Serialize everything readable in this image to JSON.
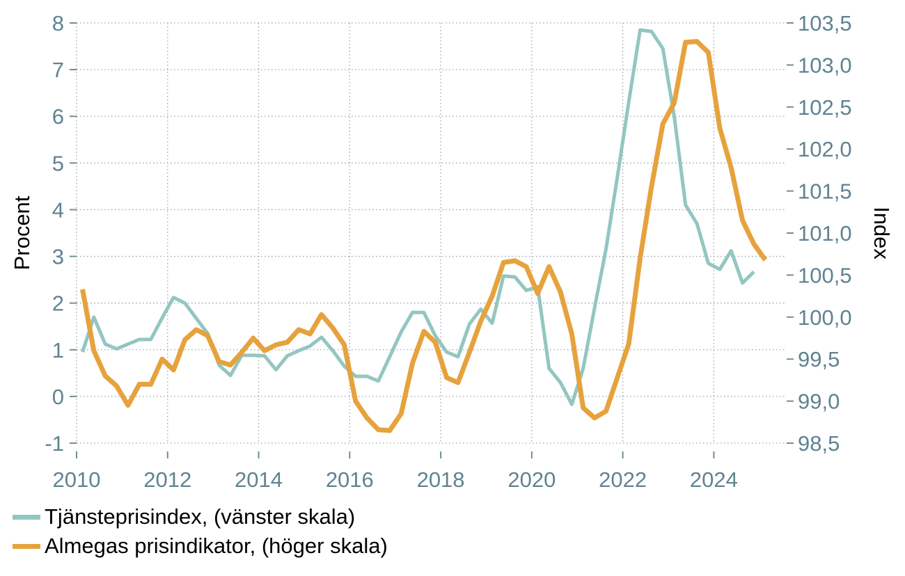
{
  "chart_data": {
    "type": "line",
    "y_left": {
      "label": "Procent",
      "range": [
        -1,
        8
      ],
      "ticks": [
        "-1",
        "0",
        "1",
        "2",
        "3",
        "4",
        "5",
        "6",
        "7",
        "8"
      ]
    },
    "y_right": {
      "label": "Index",
      "range": [
        98.5,
        103.5
      ],
      "ticks": [
        "98,5",
        "99,0",
        "99,5",
        "100,0",
        "100,5",
        "101,0",
        "101,5",
        "102,0",
        "102,5",
        "103,0",
        "103,5"
      ]
    },
    "x_axis": {
      "range": [
        2010,
        2025.6
      ],
      "ticks": [
        "2010",
        "2012",
        "2014",
        "2016",
        "2018",
        "2020",
        "2022",
        "2024"
      ]
    },
    "grid": true,
    "legend_position": "bottom-left",
    "series": [
      {
        "name": "Tjänsteprisindex, (vänster skala)",
        "axis": "left",
        "color": "#93c6c0",
        "x": [
          2010.13,
          2010.38,
          2010.63,
          2010.88,
          2011.13,
          2011.38,
          2011.63,
          2011.88,
          2012.13,
          2012.38,
          2012.63,
          2012.88,
          2013.13,
          2013.38,
          2013.63,
          2013.88,
          2014.13,
          2014.38,
          2014.63,
          2014.88,
          2015.13,
          2015.38,
          2015.63,
          2015.88,
          2016.13,
          2016.38,
          2016.63,
          2016.88,
          2017.13,
          2017.38,
          2017.63,
          2017.88,
          2018.13,
          2018.38,
          2018.63,
          2018.88,
          2019.13,
          2019.38,
          2019.63,
          2019.88,
          2020.13,
          2020.38,
          2020.63,
          2020.88,
          2021.13,
          2021.38,
          2021.63,
          2021.88,
          2022.13,
          2022.38,
          2022.63,
          2022.88,
          2023.13,
          2023.38,
          2023.63,
          2023.88,
          2024.13,
          2024.38,
          2024.63,
          2024.88
        ],
        "y": [
          0.95,
          1.7,
          1.12,
          1.02,
          1.12,
          1.22,
          1.22,
          1.68,
          2.12,
          2.0,
          1.67,
          1.35,
          0.67,
          0.45,
          0.88,
          0.88,
          0.87,
          0.57,
          0.87,
          0.98,
          1.08,
          1.27,
          0.98,
          0.65,
          0.43,
          0.43,
          0.33,
          0.85,
          1.38,
          1.8,
          1.8,
          1.3,
          0.95,
          0.85,
          1.55,
          1.87,
          1.57,
          2.58,
          2.56,
          2.27,
          2.35,
          0.6,
          0.3,
          -0.17,
          0.6,
          1.9,
          3.15,
          4.7,
          6.3,
          7.85,
          7.82,
          7.45,
          6.0,
          4.1,
          3.7,
          2.85,
          2.72,
          3.12,
          2.43,
          2.67
        ]
      },
      {
        "name": "Almegas prisindikator, (höger skala)",
        "axis": "right",
        "color": "#e6a23c",
        "x": [
          2010.13,
          2010.38,
          2010.63,
          2010.88,
          2011.13,
          2011.38,
          2011.63,
          2011.88,
          2012.13,
          2012.38,
          2012.63,
          2012.88,
          2013.13,
          2013.38,
          2013.63,
          2013.88,
          2014.13,
          2014.38,
          2014.63,
          2014.88,
          2015.13,
          2015.38,
          2015.63,
          2015.88,
          2016.13,
          2016.38,
          2016.63,
          2016.88,
          2017.13,
          2017.38,
          2017.63,
          2017.88,
          2018.13,
          2018.38,
          2018.63,
          2018.88,
          2019.13,
          2019.38,
          2019.63,
          2019.88,
          2020.13,
          2020.38,
          2020.63,
          2020.88,
          2021.13,
          2021.38,
          2021.63,
          2021.88,
          2022.13,
          2022.38,
          2022.63,
          2022.88,
          2023.13,
          2023.38,
          2023.63,
          2023.88,
          2024.13,
          2024.38,
          2024.63,
          2024.88,
          2025.13
        ],
        "y": [
          100.33,
          99.6,
          99.3,
          99.18,
          98.95,
          99.2,
          99.2,
          99.5,
          99.37,
          99.73,
          99.85,
          99.78,
          99.47,
          99.43,
          99.58,
          99.75,
          99.6,
          99.67,
          99.7,
          99.85,
          99.8,
          100.03,
          99.87,
          99.67,
          99.0,
          98.8,
          98.66,
          98.65,
          98.85,
          99.45,
          99.83,
          99.7,
          99.28,
          99.22,
          99.58,
          99.95,
          100.25,
          100.65,
          100.67,
          100.6,
          100.28,
          100.6,
          100.3,
          99.8,
          98.92,
          98.8,
          98.88,
          99.28,
          99.68,
          100.7,
          101.55,
          102.3,
          102.55,
          103.27,
          103.28,
          103.15,
          102.25,
          101.78,
          101.15,
          100.87,
          100.68
        ]
      }
    ]
  }
}
